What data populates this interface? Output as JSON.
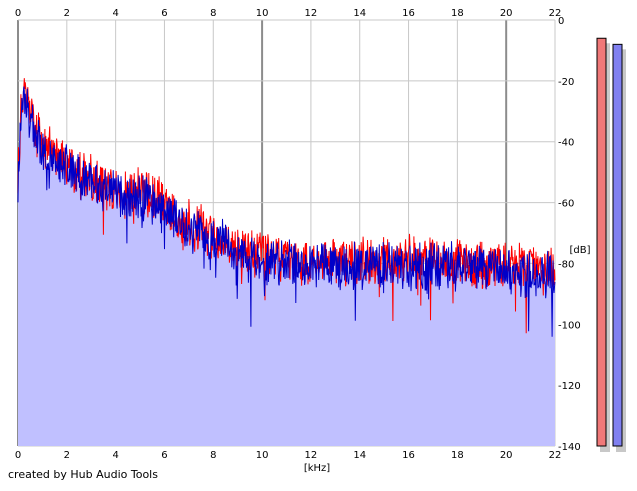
{
  "credit": "created by Hub Audio Tools",
  "colors": {
    "background": "#ffffff",
    "plot_background": "#ffffff",
    "grid": "#c8c8c8",
    "grid_major": "#8c8c8c",
    "fill": "#c0c0ff",
    "left_channel": "#ff0000",
    "right_channel": "#0000c8",
    "meter_left": "#f07878",
    "meter_right": "#8080f0",
    "meter_shadow": "#c8c8c8"
  },
  "chart_data": {
    "type": "line",
    "xlabel": "[kHz]",
    "ylabel": "[dB]",
    "xlim": [
      0,
      22
    ],
    "ylim": [
      -140,
      0
    ],
    "x_ticks": [
      "0",
      "2",
      "4",
      "6",
      "8",
      "10",
      "12",
      "14",
      "16",
      "18",
      "20",
      "22"
    ],
    "y_ticks": [
      "0",
      "-20",
      "-40",
      "-60",
      "-80",
      "-100",
      "-120",
      "-140"
    ],
    "grid": true,
    "series": [
      {
        "channel": "left",
        "color": "#ff0000",
        "x": [
          0,
          0.1,
          0.2,
          0.35,
          0.5,
          0.75,
          1,
          1.5,
          2,
          2.5,
          3,
          3.5,
          4,
          4.5,
          5,
          5.5,
          6,
          6.5,
          7,
          7.5,
          8,
          8.5,
          9,
          9.5,
          10,
          10.5,
          11,
          12,
          13,
          14,
          15,
          16,
          17,
          18,
          19,
          20,
          21,
          22
        ],
        "y": [
          -52,
          -32,
          -24,
          -26,
          -31,
          -36,
          -40,
          -44,
          -47,
          -50,
          -52,
          -54,
          -56,
          -57,
          -56,
          -58,
          -61,
          -64,
          -67,
          -68,
          -71,
          -73,
          -74,
          -76,
          -77,
          -78,
          -78,
          -79,
          -79,
          -79,
          -79,
          -79,
          -79,
          -79,
          -80,
          -80,
          -81,
          -83
        ]
      },
      {
        "channel": "right",
        "color": "#0000c8",
        "x": [
          0,
          0.1,
          0.2,
          0.35,
          0.5,
          0.75,
          1,
          1.5,
          2,
          2.5,
          3,
          3.5,
          4,
          4.5,
          5,
          5.5,
          6,
          6.5,
          7,
          7.5,
          8,
          8.5,
          9,
          9.5,
          10,
          10.5,
          11,
          12,
          13,
          14,
          15,
          16,
          17,
          18,
          19,
          20,
          21,
          22
        ],
        "y": [
          -55,
          -34,
          -26,
          -28,
          -33,
          -38,
          -42,
          -46,
          -49,
          -51,
          -53,
          -55,
          -57,
          -58,
          -58,
          -60,
          -62,
          -65,
          -68,
          -69,
          -72,
          -74,
          -76,
          -78,
          -79,
          -80,
          -80,
          -81,
          -81,
          -81,
          -81,
          -81,
          -81,
          -81,
          -82,
          -82,
          -83,
          -85
        ]
      }
    ],
    "levels": {
      "left": -6,
      "right": -8
    }
  }
}
